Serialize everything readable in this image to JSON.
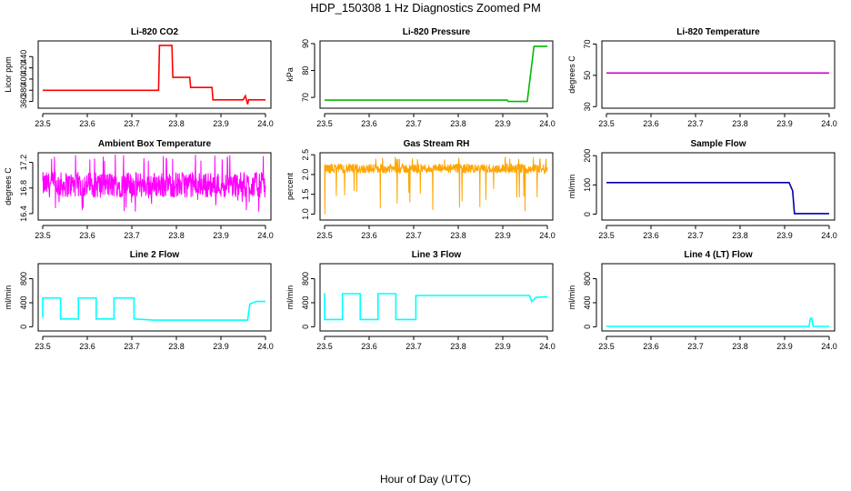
{
  "page": {
    "title": "HDP_150308  1 Hz Diagnostics Zoomed PM",
    "xlabel": "Hour of Day (UTC)"
  },
  "chart_data": [
    {
      "type": "line",
      "title": "Li-820 CO2",
      "ylabel": "Licor ppm",
      "color": "#ff0000",
      "xlim": [
        23.5,
        24.0
      ],
      "ylim": [
        348,
        468
      ],
      "xticks": [
        "23.5",
        "23.6",
        "23.7",
        "23.8",
        "23.9",
        "24.0"
      ],
      "yticks": [
        360,
        380,
        400,
        420,
        440
      ],
      "series": [
        {
          "x": [
            23.5,
            23.65,
            23.76,
            23.762,
            23.79,
            23.792,
            23.83,
            23.832,
            23.88,
            23.882,
            23.95,
            23.955,
            23.96,
            23.962,
            24.0
          ],
          "y": [
            380,
            380,
            380,
            460,
            460,
            403,
            403,
            385,
            385,
            363,
            363,
            370,
            355,
            363,
            363
          ]
        }
      ]
    },
    {
      "type": "line",
      "title": "Li-820 Pressure",
      "ylabel": "kPa",
      "color": "#00bb00",
      "xlim": [
        23.5,
        24.0
      ],
      "ylim": [
        66,
        91
      ],
      "xticks": [
        "23.5",
        "23.6",
        "23.7",
        "23.8",
        "23.9",
        "24.0"
      ],
      "yticks": [
        70,
        80,
        90
      ],
      "series": [
        {
          "x": [
            23.5,
            23.91,
            23.912,
            23.955,
            23.965,
            23.97,
            24.0
          ],
          "y": [
            69,
            69,
            68.5,
            68.5,
            82,
            89,
            89
          ]
        }
      ]
    },
    {
      "type": "line",
      "title": "Li-820 Temperature",
      "ylabel": "degrees C",
      "color": "#cc00cc",
      "xlim": [
        23.5,
        24.0
      ],
      "ylim": [
        29,
        72
      ],
      "xticks": [
        "23.5",
        "23.6",
        "23.7",
        "23.8",
        "23.9",
        "24.0"
      ],
      "yticks": [
        30,
        50,
        70
      ],
      "series": [
        {
          "x": [
            23.5,
            24.0
          ],
          "y": [
            51.5,
            51.5
          ]
        }
      ]
    },
    {
      "type": "line",
      "title": "Ambient Box Temperature",
      "ylabel": "degrees C",
      "color": "#ff00ff",
      "xlim": [
        23.5,
        24.0
      ],
      "ylim": [
        16.3,
        17.35
      ],
      "xticks": [
        "23.5",
        "23.6",
        "23.7",
        "23.8",
        "23.9",
        "24.0"
      ],
      "yticks": [
        "16.4",
        "16.8",
        "17.2"
      ],
      "noise": {
        "base": 16.85,
        "amp": 0.2,
        "spike_low": 16.42,
        "spike_high": 17.32
      }
    },
    {
      "type": "line",
      "title": "Gas Stream RH",
      "ylabel": "percent",
      "color": "#ffa500",
      "xlim": [
        23.5,
        24.0
      ],
      "ylim": [
        0.85,
        2.55
      ],
      "xticks": [
        "23.5",
        "23.6",
        "23.7",
        "23.8",
        "23.9",
        "24.0"
      ],
      "yticks": [
        "1.0",
        "1.5",
        "2.0",
        "2.5"
      ],
      "noise": {
        "base": 2.15,
        "amp": 0.12,
        "spike_low": 0.95,
        "spike_high": 2.45
      }
    },
    {
      "type": "line",
      "title": "Sample Flow",
      "ylabel": "ml/min",
      "color": "#0000aa",
      "xlim": [
        23.5,
        24.0
      ],
      "ylim": [
        -20,
        210
      ],
      "xticks": [
        "23.5",
        "23.6",
        "23.7",
        "23.8",
        "23.9",
        "24.0"
      ],
      "yticks": [
        0,
        100,
        200
      ],
      "series": [
        {
          "x": [
            23.5,
            23.91,
            23.918,
            23.922,
            24.0
          ],
          "y": [
            108,
            108,
            80,
            2,
            2
          ]
        }
      ]
    },
    {
      "type": "line",
      "title": "Line 2 Flow",
      "ylabel": "ml/min",
      "color": "#00ffff",
      "xlim": [
        23.5,
        24.0
      ],
      "ylim": [
        -70,
        1050
      ],
      "xticks": [
        "23.5",
        "23.6",
        "23.7",
        "23.8",
        "23.9",
        "24.0"
      ],
      "yticks": [
        0,
        400,
        800
      ],
      "series": [
        {
          "x": [
            23.5,
            23.5,
            23.54,
            23.54,
            23.58,
            23.58,
            23.62,
            23.62,
            23.66,
            23.66,
            23.705,
            23.705,
            23.75,
            23.96,
            23.965,
            23.98,
            24.0
          ],
          "y": [
            150,
            480,
            480,
            130,
            130,
            480,
            480,
            130,
            130,
            480,
            480,
            130,
            110,
            110,
            380,
            420,
            420
          ]
        }
      ]
    },
    {
      "type": "line",
      "title": "Line 3 Flow",
      "ylabel": "ml/min",
      "color": "#00ffff",
      "xlim": [
        23.5,
        24.0
      ],
      "ylim": [
        -70,
        1050
      ],
      "xticks": [
        "23.5",
        "23.6",
        "23.7",
        "23.8",
        "23.9",
        "24.0"
      ],
      "yticks": [
        0,
        400,
        800
      ],
      "series": [
        {
          "x": [
            23.5,
            23.5,
            23.54,
            23.54,
            23.58,
            23.58,
            23.62,
            23.62,
            23.66,
            23.66,
            23.705,
            23.705,
            23.72,
            23.96,
            23.965,
            23.975,
            24.0
          ],
          "y": [
            560,
            120,
            120,
            550,
            550,
            120,
            120,
            550,
            550,
            120,
            120,
            520,
            520,
            520,
            420,
            490,
            500
          ]
        }
      ]
    },
    {
      "type": "line",
      "title": "Line 4 (LT) Flow",
      "ylabel": "ml/min",
      "color": "#00ffff",
      "xlim": [
        23.5,
        24.0
      ],
      "ylim": [
        -70,
        1050
      ],
      "xticks": [
        "23.5",
        "23.6",
        "23.7",
        "23.8",
        "23.9",
        "24.0"
      ],
      "yticks": [
        0,
        400,
        800
      ],
      "series": [
        {
          "x": [
            23.5,
            23.955,
            23.958,
            23.961,
            23.964,
            24.0
          ],
          "y": [
            5,
            5,
            140,
            140,
            5,
            5
          ]
        }
      ]
    }
  ]
}
